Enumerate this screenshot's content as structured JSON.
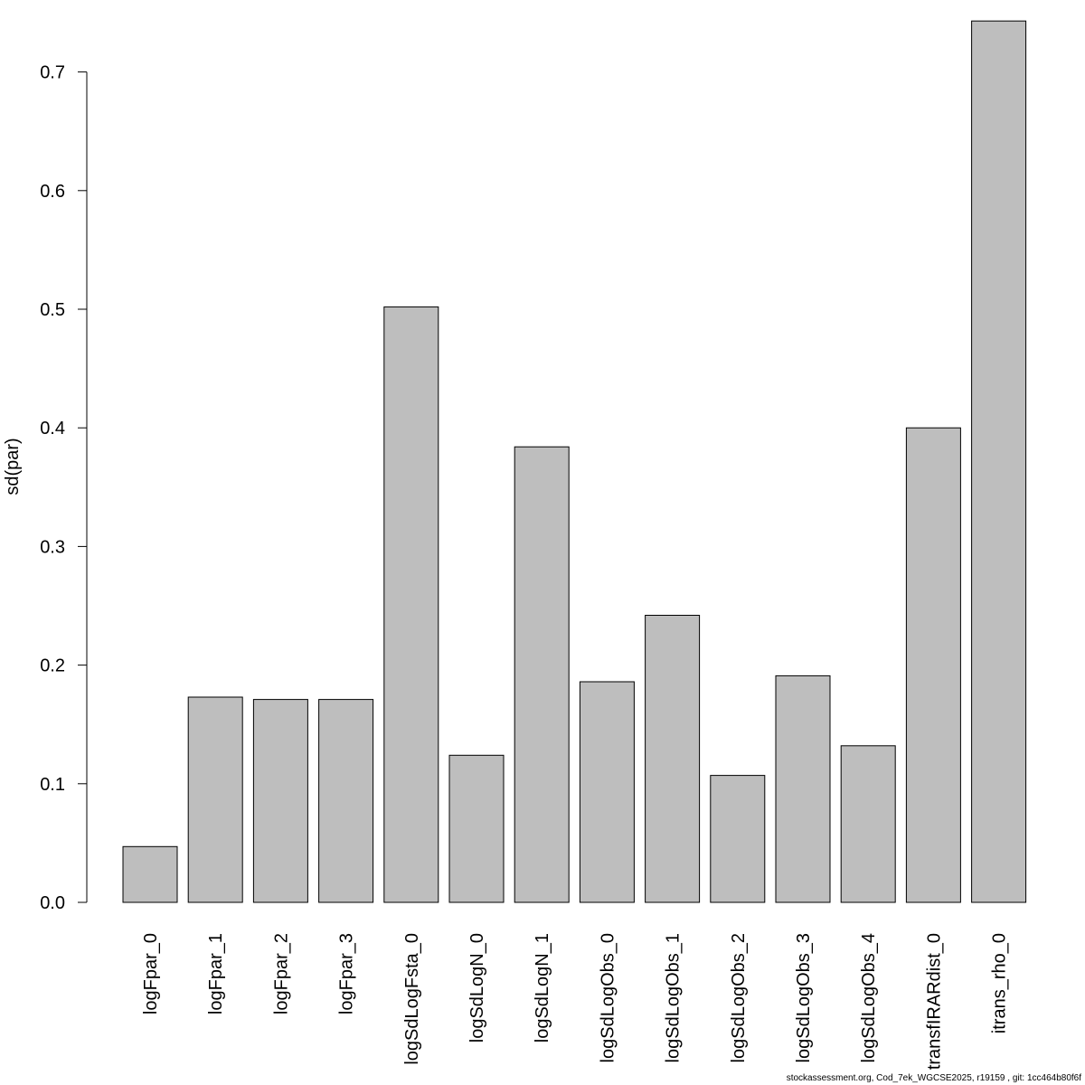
{
  "chart_data": {
    "type": "bar",
    "title": "",
    "xlabel": "",
    "ylabel": "sd(par)",
    "ylim": [
      0,
      0.74
    ],
    "yticks": [
      0.0,
      0.1,
      0.2,
      0.3,
      0.4,
      0.5,
      0.6,
      0.7
    ],
    "ytick_labels": [
      "0.0",
      "0.1",
      "0.2",
      "0.3",
      "0.4",
      "0.5",
      "0.6",
      "0.7"
    ],
    "grid": false,
    "categories": [
      "logFpar_0",
      "logFpar_1",
      "logFpar_2",
      "logFpar_3",
      "logSdLogFsta_0",
      "logSdLogN_0",
      "logSdLogN_1",
      "logSdLogObs_0",
      "logSdLogObs_1",
      "logSdLogObs_2",
      "logSdLogObs_3",
      "logSdLogObs_4",
      "transfIRARdist_0",
      "itrans_rho_0"
    ],
    "values": [
      0.047,
      0.173,
      0.171,
      0.171,
      0.502,
      0.124,
      0.384,
      0.186,
      0.242,
      0.107,
      0.191,
      0.132,
      0.4,
      0.743
    ],
    "bar_color": "#bebebe",
    "bar_border_color": "#000000"
  },
  "footer": "stockassessment.org, Cod_7ek_WGCSE2025, r19159 , git: 1cc464b80f6f"
}
